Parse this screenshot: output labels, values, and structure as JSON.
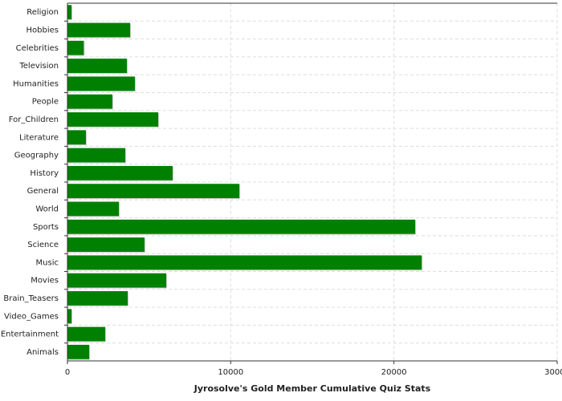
{
  "chart_data": {
    "type": "bar",
    "orientation": "horizontal",
    "title": "Jyrosolve's Gold Member Cumulative Quiz Stats",
    "categories": [
      "Religion",
      "Hobbies",
      "Celebrities",
      "Television",
      "Humanities",
      "People",
      "For_Children",
      "Literature",
      "Geography",
      "History",
      "General",
      "World",
      "Sports",
      "Science",
      "Music",
      "Movies",
      "Brain_Teasers",
      "Video_Games",
      "Entertainment",
      "Animals"
    ],
    "values": [
      250,
      3840,
      1000,
      3640,
      4130,
      2750,
      5560,
      1130,
      3540,
      6440,
      10530,
      3150,
      21300,
      4720,
      21700,
      6050,
      3690,
      250,
      2310,
      1330
    ],
    "color": "#008000",
    "xlim": [
      0,
      30000
    ],
    "xticks": [
      0,
      10000,
      20000,
      30000
    ],
    "grid": true
  }
}
